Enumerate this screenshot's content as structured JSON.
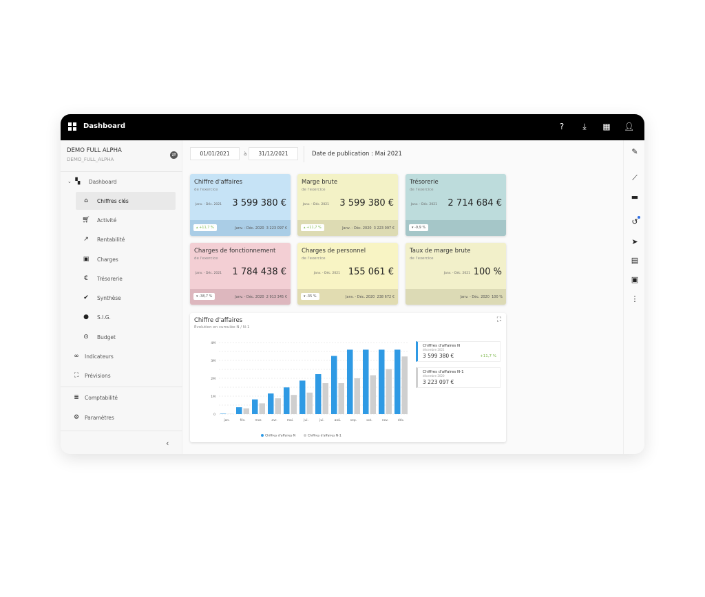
{
  "header": {
    "title": "Dashboard",
    "icons": [
      "help-icon",
      "download-icon",
      "apps-icon",
      "account-icon"
    ]
  },
  "sidebar": {
    "org_name": "DEMO FULL ALPHA",
    "org_code": "DEMO_FULL_ALPHA",
    "items": [
      {
        "label": "Dashboard",
        "icon": "dashboard-icon"
      },
      {
        "label": "Chiffres clés",
        "icon": "home-icon"
      },
      {
        "label": "Activité",
        "icon": "cart-icon"
      },
      {
        "label": "Rentabilité",
        "icon": "trending-icon"
      },
      {
        "label": "Charges",
        "icon": "square-icon"
      },
      {
        "label": "Trésorerie",
        "icon": "euro-icon"
      },
      {
        "label": "Synthèse",
        "icon": "check-circle-icon"
      },
      {
        "label": "S.I.G.",
        "icon": "circle-icon"
      },
      {
        "label": "Budget",
        "icon": "target-icon"
      },
      {
        "label": "Indicateurs",
        "icon": "infinity-icon"
      },
      {
        "label": "Prévisions",
        "icon": "frame-icon"
      },
      {
        "label": "Comptabilité",
        "icon": "list-icon"
      },
      {
        "label": "Paramètres",
        "icon": "gear-icon"
      }
    ]
  },
  "filters": {
    "date_from": "01/01/2021",
    "to_label": "à",
    "date_to": "31/12/2021",
    "publication": "Date de publication : Mai 2021"
  },
  "cards": [
    {
      "title": "Chiffre d'affaires",
      "subtitle": "de l'exercice",
      "period": "Janv. - Déc. 2021",
      "value": "3 599 380 €",
      "change": "+11,7 %",
      "trend": "up",
      "prev_period": "Janv. - Déc. 2020",
      "prev_value": "3 223 097 €",
      "color": "#c6e3f6",
      "footer": "#aacde6"
    },
    {
      "title": "Marge brute",
      "subtitle": "de l'exercice",
      "period": "Janv. - Déc. 2021",
      "value": "3 599 380 €",
      "change": "+11,7 %",
      "trend": "up",
      "prev_period": "Janv. - Déc. 2020",
      "prev_value": "3 223 097 €",
      "color": "#f3f2c6",
      "footer": "#dddbb3"
    },
    {
      "title": "Trésorerie",
      "subtitle": "de l'exercice",
      "period": "Janv. - Déc. 2021",
      "value": "2 714 684 €",
      "change": "-9,9 %",
      "trend": "down",
      "prev_period": "",
      "prev_value": "",
      "color": "#bddcdc",
      "footer": "#a5c6c8"
    },
    {
      "title": "Charges de fonctionnement",
      "subtitle": "de l'exercice",
      "period": "Janv. - Déc. 2021",
      "value": "1 784 438 €",
      "change": "-38,7 %",
      "trend": "down",
      "prev_period": "Janv. - Déc. 2020",
      "prev_value": "2 913 345 €",
      "color": "#f3cfd4",
      "footer": "#ddb7be"
    },
    {
      "title": "Charges de personnel",
      "subtitle": "de l'exercice",
      "period": "Janv. - Déc. 2021",
      "value": "155 061 €",
      "change": "-35 %",
      "trend": "down",
      "prev_period": "Janv. - Déc. 2020",
      "prev_value": "238 672 €",
      "color": "#f8f4c4",
      "footer": "#e1dcb1"
    },
    {
      "title": "Taux de marge brute",
      "subtitle": "de l'exercice",
      "period": "Janv. - Déc. 2021",
      "value": "100 %",
      "change": "",
      "trend": "",
      "prev_period": "Janv. - Déc. 2020",
      "prev_value": "100 %",
      "color": "#f2f0ca",
      "footer": "#dcdab5"
    }
  ],
  "chart_card": {
    "title": "Chiffre d'affaires",
    "subtitle": "Évolution en cumulée N / N-1",
    "legend_boxes": [
      {
        "label": "Chiffres d'affaires N",
        "date": "décembre 2021",
        "value": "3 599 380 €",
        "change": "+11,7 %",
        "color": "#2f9ae4"
      },
      {
        "label": "Chiffres d'affaires N-1",
        "date": "décembre 2020",
        "value": "3 223 097 €",
        "color": "#cfcfcf"
      }
    ]
  },
  "chart_data": {
    "type": "bar",
    "categories": [
      "jan.",
      "fév.",
      "mar.",
      "avr.",
      "mai.",
      "jui.",
      "jui.",
      "aoû.",
      "sep.",
      "oct.",
      "nov.",
      "déc."
    ],
    "series": [
      {
        "name": "Chiffres d'affaires N",
        "color": "#2f9ae4",
        "values": [
          0.02,
          0.38,
          0.82,
          1.15,
          1.49,
          1.87,
          2.23,
          3.25,
          3.6,
          3.6,
          3.6,
          3.6
        ]
      },
      {
        "name": "Chiffres d'affaires N-1",
        "color": "#cfcfcf",
        "values": [
          0.01,
          0.32,
          0.6,
          0.88,
          1.07,
          1.2,
          1.73,
          1.73,
          2.0,
          2.17,
          2.51,
          3.22
        ]
      }
    ],
    "ylim": [
      0,
      4
    ],
    "yticks": [
      "0",
      "1M",
      "2M",
      "3M",
      "4M"
    ],
    "grid": true,
    "legend": "bottom"
  },
  "rail": {
    "icons": [
      "edit-icon",
      "insights-icon",
      "comment-icon",
      "history-icon",
      "send-icon",
      "contacts-icon",
      "pdf-icon",
      "more-icon"
    ]
  }
}
